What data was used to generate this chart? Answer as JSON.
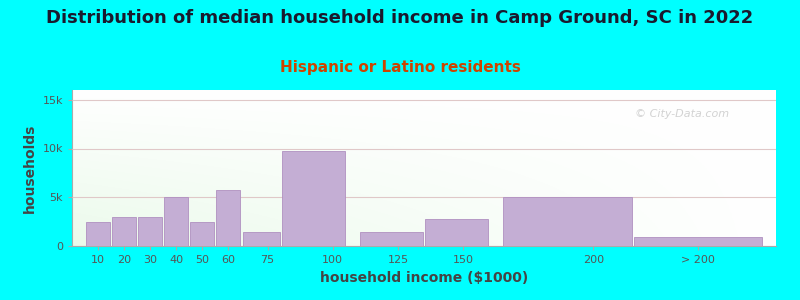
{
  "title": "Distribution of median household income in Camp Ground, SC in 2022",
  "subtitle": "Hispanic or Latino residents",
  "xlabel": "household income ($1000)",
  "ylabel": "households",
  "background_color": "#00ffff",
  "bar_color": "#c4aed4",
  "bar_edge_color": "#b090c0",
  "watermark": "© City-Data.com",
  "values": [
    2500,
    3000,
    3000,
    5000,
    2500,
    5700,
    1400,
    9700,
    1400,
    2800,
    5000,
    900
  ],
  "bar_lefts": [
    5,
    15,
    25,
    35,
    45,
    55,
    65,
    80,
    110,
    135,
    165,
    215
  ],
  "bar_widths": [
    10,
    10,
    10,
    10,
    10,
    10,
    15,
    25,
    25,
    25,
    50,
    50
  ],
  "yticks": [
    0,
    5000,
    10000,
    15000
  ],
  "ytick_labels": [
    "0",
    "5k",
    "10k",
    "15k"
  ],
  "ylim": [
    0,
    16000
  ],
  "xlim": [
    0,
    270
  ],
  "title_fontsize": 13,
  "subtitle_fontsize": 11,
  "axis_label_fontsize": 10,
  "tick_fontsize": 8,
  "title_color": "#1a1a2e",
  "subtitle_color": "#cc4400",
  "axis_label_color": "#444444",
  "tick_color": "#555555",
  "grid_color": "#e0c8c8",
  "xtick_positions": [
    10,
    20,
    30,
    40,
    50,
    60,
    75,
    100,
    125,
    150,
    200,
    240
  ],
  "xtick_labels": [
    "10",
    "20",
    "30",
    "40",
    "50",
    "60",
    "75",
    "100",
    "125",
    "150",
    "200",
    "> 200"
  ]
}
